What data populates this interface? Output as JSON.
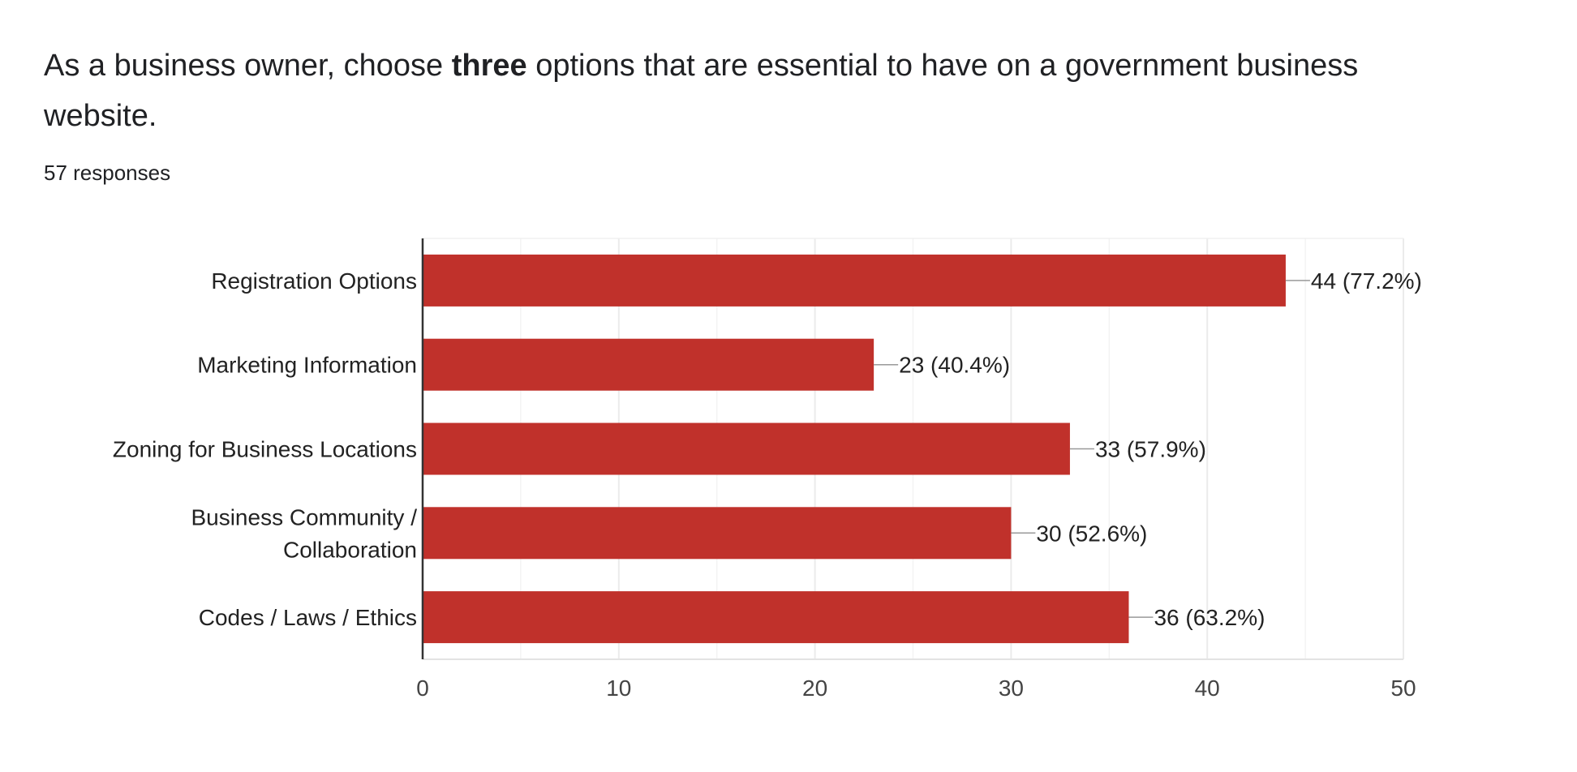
{
  "question": {
    "title_before": "As a business owner, choose ",
    "title_bold": "three",
    "title_after": " options that are essential to have on a government business website.",
    "responses": "57 responses"
  },
  "colors": {
    "bar": "#c0312b",
    "grid": "#ebebeb",
    "axis": "#333333",
    "text": "#222222",
    "tick_text": "#444444",
    "leader": "#999999"
  },
  "chart_data": {
    "type": "bar",
    "orientation": "horizontal",
    "categories": [
      [
        "Registration Options"
      ],
      [
        "Marketing Information"
      ],
      [
        "Zoning for Business Locations"
      ],
      [
        "Business Community /",
        "Collaboration"
      ],
      [
        "Codes / Laws / Ethics"
      ]
    ],
    "values": [
      44,
      23,
      33,
      30,
      36
    ],
    "data_labels": [
      "44 (77.2%)",
      "23 (40.4%)",
      "33 (57.9%)",
      "30 (52.6%)",
      "36 (63.2%)"
    ],
    "xlim": [
      0,
      50
    ],
    "ticks": [
      0,
      10,
      20,
      30,
      40,
      50
    ],
    "minor_gridlines": [
      5,
      15,
      25,
      35,
      45
    ],
    "grid": true,
    "legend": "none"
  }
}
